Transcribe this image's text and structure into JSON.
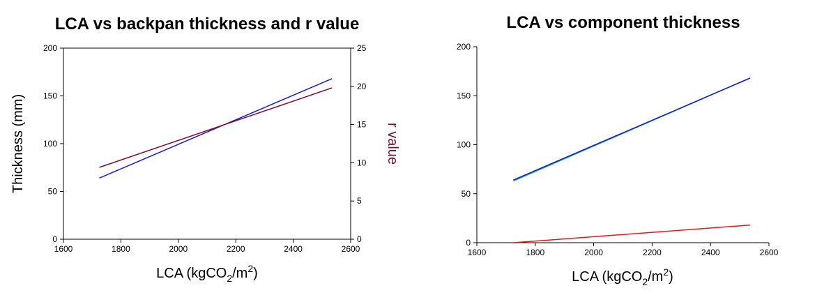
{
  "chart_data": [
    {
      "type": "line",
      "title": "LCA vs backpan thickness and r value",
      "xlabel": "LCA (kgCO",
      "xlabel_sub": "2",
      "xlabel_mid": "/m",
      "xlabel_sup": "2",
      "xlabel_end": ")",
      "ylabel": "Thickness (mm)",
      "y2label": "r value",
      "xlim": [
        1600,
        2600
      ],
      "ylim": [
        0,
        200
      ],
      "y2lim": [
        0,
        25
      ],
      "xticks": [
        1600,
        1800,
        2000,
        2200,
        2400,
        2600
      ],
      "yticks": [
        0,
        50,
        100,
        150,
        200
      ],
      "y2ticks": [
        0,
        5,
        10,
        15,
        20,
        25
      ],
      "series": [
        {
          "name": "thickness",
          "axis": "left",
          "color": "#1a1ad0",
          "x": [
            1725,
            2535
          ],
          "y": [
            64,
            168
          ]
        },
        {
          "name": "r value",
          "axis": "right",
          "color": "#7a1035",
          "x": [
            1725,
            2535
          ],
          "y": [
            9.4,
            19.8
          ]
        }
      ]
    },
    {
      "type": "line",
      "title": "LCA vs component thickness",
      "xlabel": "LCA (kgCO",
      "xlabel_sub": "2",
      "xlabel_mid": "/m",
      "xlabel_sup": "2",
      "xlabel_end": ")",
      "xlim": [
        1600,
        2600
      ],
      "ylim": [
        0,
        200
      ],
      "xticks": [
        1600,
        1800,
        2000,
        2200,
        2400,
        2600
      ],
      "yticks": [
        0,
        50,
        100,
        150,
        200
      ],
      "series": [
        {
          "name": "green",
          "color": "#22aa55",
          "x": [
            1725,
            2535
          ],
          "y": [
            63,
            168
          ]
        },
        {
          "name": "blue",
          "color": "#1a1ad0",
          "x": [
            1725,
            2535
          ],
          "y": [
            64,
            168
          ]
        },
        {
          "name": "red",
          "color": "#e01818",
          "x": [
            1725,
            2535
          ],
          "y": [
            0,
            18
          ]
        }
      ]
    }
  ]
}
